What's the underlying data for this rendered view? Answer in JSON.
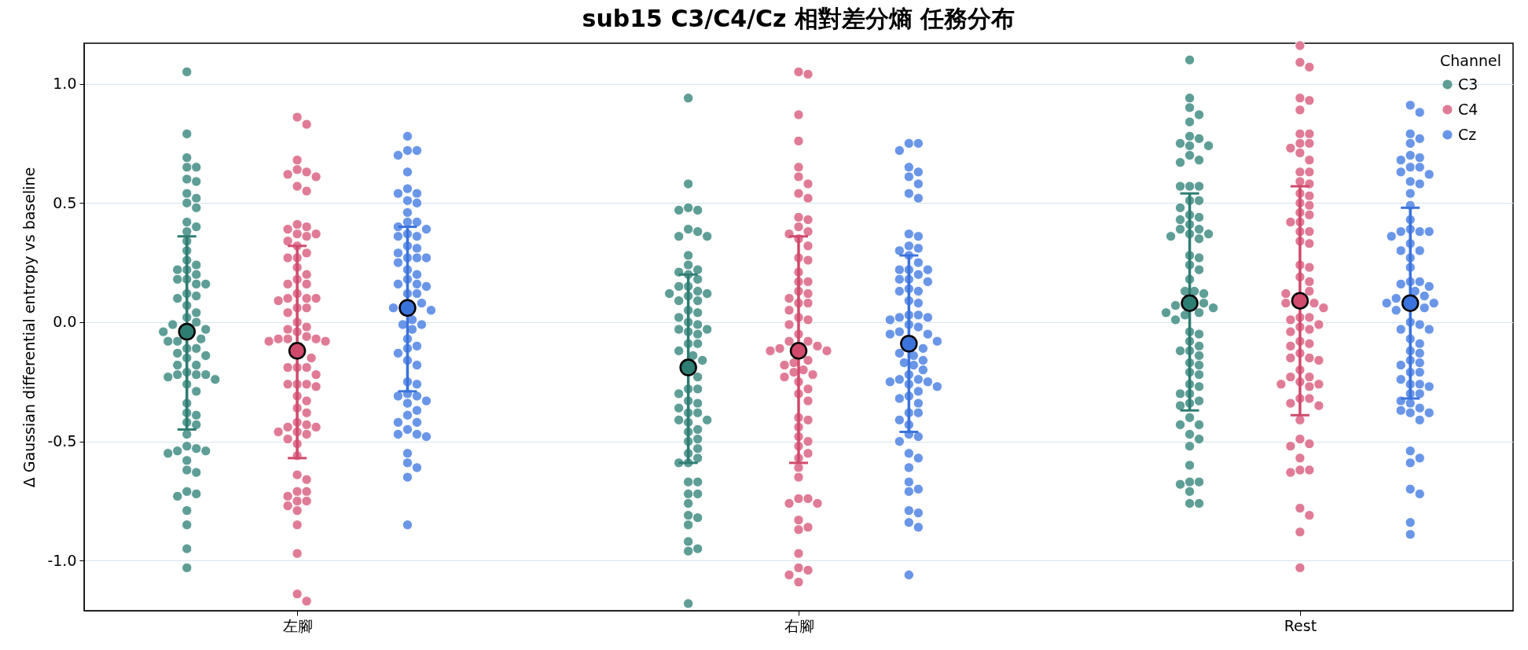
{
  "chart_data": {
    "type": "scatter",
    "title": "sub15 C3/C4/Cz 相對差分熵 任務分布",
    "ylabel": "Δ Gaussian differential entropy vs baseline",
    "legend_title": "Channel",
    "legend": "top right",
    "grid": "y",
    "marker": "circle",
    "categories": [
      "左腳",
      "右腳",
      "Rest"
    ],
    "ylim": [
      -1.21,
      1.17
    ],
    "yticks": [
      {
        "value": -1,
        "label": "-1.0"
      },
      {
        "value": -0.5,
        "label": "-0.5"
      },
      {
        "value": 0,
        "label": "0.0"
      },
      {
        "value": 0.5,
        "label": "0.5"
      },
      {
        "value": 1,
        "label": "1.0"
      }
    ],
    "series": [
      {
        "name": "C3",
        "color": "#5e9e96",
        "x": [
          "左腳",
          "左腳",
          "左腳",
          "左腳",
          "左腳",
          "左腳",
          "左腳",
          "左腳",
          "左腳",
          "左腳",
          "左腳",
          "左腳",
          "左腳",
          "左腳",
          "左腳",
          "左腳",
          "左腳",
          "左腳",
          "左腳",
          "左腳",
          "左腳",
          "左腳",
          "左腳",
          "左腳",
          "左腳",
          "左腳",
          "左腳",
          "左腳",
          "左腳",
          "左腳",
          "左腳",
          "左腳",
          "左腳",
          "左腳",
          "左腳",
          "左腳",
          "左腳",
          "左腳",
          "左腳",
          "左腳",
          "左腳",
          "左腳",
          "左腳",
          "左腳",
          "左腳",
          "左腳",
          "左腳",
          "左腳",
          "左腳",
          "左腳",
          "左腳",
          "左腳",
          "左腳",
          "左腳",
          "左腳",
          "左腳",
          "左腳",
          "左腳",
          "左腳",
          "左腳",
          "左腳",
          "左腳",
          "左腳",
          "左腳",
          "左腳",
          "左腳",
          "左腳",
          "左腳",
          "左腳",
          "左腳",
          "左腳",
          "左腳",
          "左腳",
          "左腳",
          "右腳",
          "右腳",
          "右腳",
          "右腳",
          "右腳",
          "右腳",
          "右腳",
          "右腳",
          "右腳",
          "右腳",
          "右腳",
          "右腳",
          "右腳",
          "右腳",
          "右腳",
          "右腳",
          "右腳",
          "右腳",
          "右腳",
          "右腳",
          "右腳",
          "右腳",
          "右腳",
          "右腳",
          "右腳",
          "右腳",
          "右腳",
          "右腳",
          "右腳",
          "右腳",
          "右腳",
          "右腳",
          "右腳",
          "右腳",
          "右腳",
          "右腳",
          "右腳",
          "右腳",
          "右腳",
          "右腳",
          "右腳",
          "右腳",
          "右腳",
          "右腳",
          "右腳",
          "右腳",
          "右腳",
          "右腳",
          "右腳",
          "右腳",
          "右腳",
          "右腳",
          "右腳",
          "右腳",
          "右腳",
          "右腳",
          "右腳",
          "右腳",
          "右腳",
          "右腳",
          "右腳",
          "右腳",
          "右腳",
          "右腳",
          "右腳",
          "右腳",
          "右腳",
          "右腳",
          "右腳",
          "右腳",
          "Rest",
          "Rest",
          "Rest",
          "Rest",
          "Rest",
          "Rest",
          "Rest",
          "Rest",
          "Rest",
          "Rest",
          "Rest",
          "Rest",
          "Rest",
          "Rest",
          "Rest",
          "Rest",
          "Rest",
          "Rest",
          "Rest",
          "Rest",
          "Rest",
          "Rest",
          "Rest",
          "Rest",
          "Rest",
          "Rest",
          "Rest",
          "Rest",
          "Rest",
          "Rest",
          "Rest",
          "Rest",
          "Rest",
          "Rest",
          "Rest",
          "Rest",
          "Rest",
          "Rest",
          "Rest",
          "Rest",
          "Rest",
          "Rest",
          "Rest",
          "Rest",
          "Rest",
          "Rest",
          "Rest",
          "Rest",
          "Rest",
          "Rest",
          "Rest",
          "Rest",
          "Rest",
          "Rest",
          "Rest",
          "Rest",
          "Rest",
          "Rest",
          "Rest",
          "Rest",
          "Rest",
          "Rest",
          "Rest",
          "Rest",
          "Rest",
          "Rest",
          "Rest",
          "Rest",
          "Rest",
          "Rest",
          "Rest",
          "Rest",
          "Rest",
          "Rest",
          "Rest"
        ],
        "values": [
          1.05,
          0.79,
          0.69,
          0.65,
          0.65,
          0.6,
          0.59,
          0.54,
          0.52,
          0.5,
          0.48,
          0.42,
          0.4,
          0.38,
          0.34,
          0.3,
          0.26,
          0.24,
          0.22,
          0.22,
          0.2,
          0.18,
          0.18,
          0.16,
          0.16,
          0.11,
          0.1,
          0.12,
          0.07,
          0.04,
          0.02,
          0.0,
          -0.01,
          -0.03,
          -0.04,
          -0.07,
          -0.08,
          -0.08,
          -0.11,
          -0.11,
          -0.13,
          -0.14,
          -0.15,
          -0.18,
          -0.18,
          -0.21,
          -0.22,
          -0.22,
          -0.22,
          -0.23,
          -0.24,
          -0.26,
          -0.29,
          -0.34,
          -0.38,
          -0.39,
          -0.42,
          -0.43,
          -0.47,
          -0.54,
          -0.52,
          -0.54,
          -0.55,
          -0.53,
          -0.58,
          -0.62,
          -0.63,
          -0.72,
          -0.71,
          -0.73,
          -0.79,
          -0.85,
          -0.95,
          -1.03,
          0.94,
          0.58,
          0.48,
          0.47,
          0.47,
          0.39,
          0.38,
          0.36,
          0.36,
          0.28,
          0.24,
          0.22,
          0.2,
          0.21,
          0.15,
          0.13,
          0.15,
          0.18,
          0.12,
          0.12,
          0.09,
          0.09,
          0.11,
          0.05,
          0.04,
          0.02,
          -0.01,
          0.0,
          -0.03,
          -0.03,
          -0.05,
          -0.04,
          -0.09,
          -0.09,
          -0.12,
          -0.14,
          -0.16,
          -0.23,
          -0.28,
          -0.28,
          -0.3,
          -0.34,
          -0.33,
          -0.36,
          -0.38,
          -0.38,
          -0.41,
          -0.41,
          -0.42,
          -0.45,
          -0.46,
          -0.49,
          -0.5,
          -0.53,
          -0.55,
          -0.57,
          -0.59,
          -0.59,
          -0.67,
          -0.67,
          -0.72,
          -0.72,
          -0.76,
          -0.81,
          -0.82,
          -0.85,
          -0.92,
          -0.96,
          -0.95,
          -1.18,
          1.1,
          0.94,
          0.9,
          0.87,
          0.84,
          0.78,
          0.75,
          0.74,
          0.77,
          0.74,
          0.7,
          0.68,
          0.67,
          0.57,
          0.57,
          0.57,
          0.51,
          0.51,
          0.48,
          0.45,
          0.44,
          0.43,
          0.41,
          0.39,
          0.39,
          0.37,
          0.37,
          0.36,
          0.35,
          0.28,
          0.27,
          0.24,
          0.22,
          0.18,
          0.13,
          0.13,
          0.12,
          0.08,
          0.07,
          0.04,
          0.04,
          0.06,
          0.03,
          0.01,
          -0.04,
          -0.05,
          -0.08,
          -0.1,
          -0.12,
          -0.12,
          -0.14,
          -0.17,
          -0.18,
          -0.21,
          -0.22,
          -0.26,
          -0.27,
          -0.3,
          -0.3,
          -0.33,
          -0.34,
          -0.35,
          -0.4,
          -0.43,
          -0.43,
          -0.47,
          -0.49,
          -0.52,
          -0.6,
          -0.67,
          -0.67,
          -0.68,
          -0.71,
          -0.76,
          -0.76
        ]
      },
      {
        "name": "C4",
        "color": "#e07b96",
        "x": [
          "左腳",
          "左腳",
          "左腳",
          "左腳",
          "左腳",
          "左腳",
          "左腳",
          "左腳",
          "左腳",
          "左腳",
          "左腳",
          "左腳",
          "左腳",
          "左腳",
          "左腳",
          "左腳",
          "左腳",
          "左腳",
          "左腳",
          "左腳",
          "左腳",
          "左腳",
          "左腳",
          "左腳",
          "左腳",
          "左腳",
          "左腳",
          "左腳",
          "左腳",
          "左腳",
          "左腳",
          "左腳",
          "左腳",
          "左腳",
          "左腳",
          "左腳",
          "左腳",
          "左腳",
          "左腳",
          "左腳",
          "左腳",
          "左腳",
          "左腳",
          "左腳",
          "左腳",
          "左腳",
          "左腳",
          "左腳",
          "左腳",
          "左腳",
          "左腳",
          "左腳",
          "左腳",
          "左腳",
          "左腳",
          "左腳",
          "左腳",
          "左腳",
          "左腳",
          "左腳",
          "左腳",
          "左腳",
          "左腳",
          "左腳",
          "左腳",
          "左腳",
          "左腳",
          "左腳",
          "左腳",
          "左腳",
          "左腳",
          "左腳",
          "左腳",
          "左腳",
          "左腳",
          "左腳",
          "左腳",
          "左腳",
          "左腳",
          "右腳",
          "右腳",
          "右腳",
          "右腳",
          "右腳",
          "右腳",
          "右腳",
          "右腳",
          "右腳",
          "右腳",
          "右腳",
          "右腳",
          "右腳",
          "右腳",
          "右腳",
          "右腳",
          "右腳",
          "右腳",
          "右腳",
          "右腳",
          "右腳",
          "右腳",
          "右腳",
          "右腳",
          "右腳",
          "右腳",
          "右腳",
          "右腳",
          "右腳",
          "右腳",
          "右腳",
          "右腳",
          "右腳",
          "右腳",
          "右腳",
          "右腳",
          "右腳",
          "右腳",
          "右腳",
          "右腳",
          "右腳",
          "右腳",
          "右腳",
          "右腳",
          "右腳",
          "右腳",
          "右腳",
          "右腳",
          "右腳",
          "右腳",
          "右腳",
          "右腳",
          "右腳",
          "右腳",
          "右腳",
          "右腳",
          "右腳",
          "右腳",
          "右腳",
          "右腳",
          "右腳",
          "右腳",
          "右腳",
          "右腳",
          "右腳",
          "右腳",
          "右腳",
          "右腳",
          "右腳",
          "右腳",
          "Rest",
          "Rest",
          "Rest",
          "Rest",
          "Rest",
          "Rest",
          "Rest",
          "Rest",
          "Rest",
          "Rest",
          "Rest",
          "Rest",
          "Rest",
          "Rest",
          "Rest",
          "Rest",
          "Rest",
          "Rest",
          "Rest",
          "Rest",
          "Rest",
          "Rest",
          "Rest",
          "Rest",
          "Rest",
          "Rest",
          "Rest",
          "Rest",
          "Rest",
          "Rest",
          "Rest",
          "Rest",
          "Rest",
          "Rest",
          "Rest",
          "Rest",
          "Rest",
          "Rest",
          "Rest",
          "Rest",
          "Rest",
          "Rest",
          "Rest",
          "Rest",
          "Rest",
          "Rest",
          "Rest",
          "Rest",
          "Rest",
          "Rest",
          "Rest",
          "Rest",
          "Rest",
          "Rest",
          "Rest",
          "Rest",
          "Rest",
          "Rest",
          "Rest",
          "Rest",
          "Rest",
          "Rest",
          "Rest",
          "Rest",
          "Rest",
          "Rest",
          "Rest",
          "Rest",
          "Rest",
          "Rest",
          "Rest",
          "Rest",
          "Rest",
          "Rest",
          "Rest"
        ],
        "values": [
          0.86,
          0.83,
          0.68,
          0.64,
          0.62,
          0.63,
          0.61,
          0.57,
          0.55,
          0.39,
          0.41,
          0.4,
          0.36,
          0.37,
          0.37,
          0.34,
          0.32,
          0.29,
          0.27,
          0.27,
          0.23,
          0.2,
          0.18,
          0.16,
          0.16,
          0.12,
          0.1,
          0.09,
          0.1,
          0.1,
          0.06,
          0.04,
          0.06,
          0.0,
          -0.03,
          -0.02,
          -0.04,
          -0.08,
          -0.08,
          -0.06,
          -0.07,
          -0.07,
          -0.07,
          -0.15,
          -0.19,
          -0.19,
          -0.19,
          -0.22,
          -0.26,
          -0.26,
          -0.27,
          -0.26,
          -0.31,
          -0.33,
          -0.36,
          -0.38,
          -0.42,
          -0.44,
          -0.44,
          -0.43,
          -0.46,
          -0.46,
          -0.47,
          -0.49,
          -0.51,
          -0.56,
          -0.64,
          -0.66,
          -0.71,
          -0.71,
          -0.73,
          -0.75,
          -0.77,
          -0.75,
          -0.79,
          -0.85,
          -0.97,
          -1.14,
          -1.17,
          1.05,
          1.04,
          0.87,
          0.76,
          0.65,
          0.61,
          0.58,
          0.54,
          0.52,
          0.44,
          0.43,
          0.37,
          0.38,
          0.4,
          0.35,
          0.32,
          0.27,
          0.26,
          0.21,
          0.17,
          0.17,
          0.13,
          0.12,
          0.1,
          0.08,
          0.08,
          0.05,
          0.01,
          0.02,
          -0.01,
          -0.05,
          -0.08,
          -0.08,
          -0.1,
          -0.11,
          -0.12,
          -0.12,
          -0.17,
          -0.18,
          -0.16,
          -0.2,
          -0.21,
          -0.23,
          -0.22,
          -0.25,
          -0.28,
          -0.3,
          -0.33,
          -0.4,
          -0.41,
          -0.44,
          -0.48,
          -0.5,
          -0.52,
          -0.55,
          -0.57,
          -0.61,
          -0.65,
          -0.74,
          -0.74,
          -0.76,
          -0.76,
          -0.83,
          -0.87,
          -0.86,
          -0.97,
          -1.03,
          -1.04,
          -1.06,
          -1.09,
          1.16,
          1.07,
          1.09,
          0.94,
          0.93,
          0.89,
          0.79,
          0.79,
          0.75,
          0.75,
          0.73,
          0.71,
          0.68,
          0.63,
          0.63,
          0.59,
          0.58,
          0.54,
          0.53,
          0.5,
          0.49,
          0.46,
          0.45,
          0.42,
          0.42,
          0.38,
          0.38,
          0.33,
          0.34,
          0.23,
          0.24,
          0.19,
          0.17,
          0.12,
          0.13,
          0.08,
          0.08,
          0.06,
          0.02,
          0.02,
          0.01,
          -0.01,
          -0.03,
          -0.02,
          -0.04,
          -0.08,
          -0.1,
          -0.09,
          -0.13,
          -0.15,
          -0.15,
          -0.16,
          -0.2,
          -0.23,
          -0.23,
          -0.25,
          -0.26,
          -0.27,
          -0.26,
          -0.32,
          -0.32,
          -0.34,
          -0.35,
          -0.41,
          -0.49,
          -0.52,
          -0.51,
          -0.57,
          -0.62,
          -0.63,
          -0.62,
          -0.78,
          -0.81,
          -0.88,
          -1.03
        ]
      },
      {
        "name": "Cz",
        "color": "#6a96e8",
        "x": [
          "左腳",
          "左腳",
          "左腳",
          "左腳",
          "左腳",
          "左腳",
          "左腳",
          "左腳",
          "左腳",
          "左腳",
          "左腳",
          "左腳",
          "左腳",
          "左腳",
          "左腳",
          "左腳",
          "左腳",
          "左腳",
          "左腳",
          "左腳",
          "左腳",
          "左腳",
          "左腳",
          "左腳",
          "左腳",
          "左腳",
          "左腳",
          "左腳",
          "左腳",
          "左腳",
          "左腳",
          "左腳",
          "左腳",
          "左腳",
          "左腳",
          "左腳",
          "左腳",
          "左腳",
          "左腳",
          "左腳",
          "左腳",
          "左腳",
          "左腳",
          "左腳",
          "左腳",
          "左腳",
          "左腳",
          "左腳",
          "左腳",
          "左腳",
          "左腳",
          "左腳",
          "左腳",
          "左腳",
          "左腳",
          "左腳",
          "左腳",
          "左腳",
          "左腳",
          "左腳",
          "左腳",
          "左腳",
          "左腳",
          "左腳",
          "左腳",
          "左腳",
          "右腳",
          "右腳",
          "右腳",
          "右腳",
          "右腳",
          "右腳",
          "右腳",
          "右腳",
          "右腳",
          "右腳",
          "右腳",
          "右腳",
          "右腳",
          "右腳",
          "右腳",
          "右腳",
          "右腳",
          "右腳",
          "右腳",
          "右腳",
          "右腳",
          "右腳",
          "右腳",
          "右腳",
          "右腳",
          "右腳",
          "右腳",
          "右腳",
          "右腳",
          "右腳",
          "右腳",
          "右腳",
          "右腳",
          "右腳",
          "右腳",
          "右腳",
          "右腳",
          "右腳",
          "右腳",
          "右腳",
          "右腳",
          "右腳",
          "右腳",
          "右腳",
          "右腳",
          "右腳",
          "右腳",
          "右腳",
          "右腳",
          "右腳",
          "右腳",
          "右腳",
          "右腳",
          "右腳",
          "右腳",
          "右腳",
          "右腳",
          "右腳",
          "右腳",
          "右腳",
          "右腳",
          "右腳",
          "右腳",
          "右腳",
          "右腳",
          "右腳",
          "右腳",
          "右腳",
          "右腳",
          "右腳",
          "右腳",
          "右腳",
          "右腳",
          "右腳",
          "右腳",
          "Rest",
          "Rest",
          "Rest",
          "Rest",
          "Rest",
          "Rest",
          "Rest",
          "Rest",
          "Rest",
          "Rest",
          "Rest",
          "Rest",
          "Rest",
          "Rest",
          "Rest",
          "Rest",
          "Rest",
          "Rest",
          "Rest",
          "Rest",
          "Rest",
          "Rest",
          "Rest",
          "Rest",
          "Rest",
          "Rest",
          "Rest",
          "Rest",
          "Rest",
          "Rest",
          "Rest",
          "Rest",
          "Rest",
          "Rest",
          "Rest",
          "Rest",
          "Rest",
          "Rest",
          "Rest",
          "Rest",
          "Rest",
          "Rest",
          "Rest",
          "Rest",
          "Rest",
          "Rest",
          "Rest",
          "Rest",
          "Rest",
          "Rest",
          "Rest",
          "Rest",
          "Rest",
          "Rest",
          "Rest",
          "Rest",
          "Rest",
          "Rest",
          "Rest",
          "Rest",
          "Rest",
          "Rest",
          "Rest",
          "Rest",
          "Rest",
          "Rest",
          "Rest",
          "Rest",
          "Rest",
          "Rest",
          "Rest"
        ],
        "values": [
          0.78,
          0.72,
          0.72,
          0.7,
          0.63,
          0.56,
          0.54,
          0.54,
          0.51,
          0.5,
          0.46,
          0.42,
          0.42,
          0.4,
          0.39,
          0.37,
          0.36,
          0.36,
          0.32,
          0.31,
          0.29,
          0.27,
          0.27,
          0.27,
          0.25,
          0.22,
          0.2,
          0.18,
          0.16,
          0.16,
          0.15,
          0.12,
          0.12,
          0.08,
          0.06,
          0.05,
          0.01,
          -0.01,
          -0.01,
          -0.03,
          -0.07,
          -0.1,
          -0.11,
          -0.13,
          -0.16,
          -0.18,
          -0.25,
          -0.26,
          -0.3,
          -0.31,
          -0.31,
          -0.33,
          -0.34,
          -0.37,
          -0.39,
          -0.42,
          -0.42,
          -0.45,
          -0.47,
          -0.47,
          -0.48,
          -0.55,
          -0.59,
          -0.61,
          -0.65,
          -0.85,
          0.75,
          0.75,
          0.72,
          0.65,
          0.63,
          0.61,
          0.58,
          0.54,
          0.52,
          0.37,
          0.36,
          0.31,
          0.32,
          0.3,
          0.28,
          0.25,
          0.22,
          0.22,
          0.22,
          0.2,
          0.18,
          0.18,
          0.17,
          0.13,
          0.14,
          0.13,
          0.08,
          0.09,
          0.02,
          0.03,
          0.03,
          0.02,
          -0.01,
          0.01,
          -0.02,
          -0.05,
          -0.08,
          -0.04,
          -0.05,
          -0.13,
          -0.14,
          -0.11,
          -0.17,
          -0.16,
          -0.18,
          -0.2,
          -0.24,
          -0.22,
          -0.24,
          -0.25,
          -0.25,
          -0.26,
          -0.29,
          -0.27,
          -0.31,
          -0.32,
          -0.34,
          -0.38,
          -0.38,
          -0.41,
          -0.43,
          -0.48,
          -0.47,
          -0.5,
          -0.55,
          -0.57,
          -0.61,
          -0.7,
          -0.71,
          -0.67,
          -0.8,
          -0.79,
          -0.84,
          -0.86,
          -1.06,
          0.91,
          0.88,
          0.79,
          0.77,
          0.75,
          0.7,
          0.69,
          0.65,
          0.68,
          0.65,
          0.63,
          0.62,
          0.58,
          0.59,
          0.54,
          0.49,
          0.43,
          0.39,
          0.38,
          0.38,
          0.38,
          0.36,
          0.33,
          0.3,
          0.3,
          0.27,
          0.23,
          0.17,
          0.17,
          0.16,
          0.15,
          0.13,
          0.11,
          0.1,
          0.08,
          0.08,
          0.05,
          0.06,
          0.0,
          -0.01,
          -0.03,
          -0.03,
          -0.07,
          -0.09,
          -0.12,
          -0.13,
          -0.16,
          -0.17,
          -0.18,
          -0.21,
          -0.21,
          -0.24,
          -0.26,
          -0.26,
          -0.27,
          -0.3,
          -0.3,
          -0.33,
          -0.34,
          -0.36,
          -0.38,
          -0.37,
          -0.38,
          -0.41,
          -0.54,
          -0.57,
          -0.59,
          -0.72,
          -0.7,
          -0.84,
          -0.89
        ]
      },
      {
        "color": "#2e7d72",
        "x": [
          "左腳",
          "右腳",
          "Rest"
        ],
        "values": [
          -0.04,
          -0.19,
          0.08
        ],
        "errors": [
          [
            -0.45,
            0.36
          ],
          [
            -0.59,
            0.2
          ],
          [
            -0.37,
            0.54
          ]
        ]
      },
      {
        "color": "#d04a6c",
        "x": [
          "左腳",
          "右腳",
          "Rest"
        ],
        "values": [
          -0.12,
          -0.12,
          0.09
        ],
        "errors": [
          [
            -0.57,
            0.32
          ],
          [
            -0.59,
            0.36
          ],
          [
            -0.39,
            0.57
          ]
        ]
      },
      {
        "color": "#3b73dc",
        "x": [
          "左腳",
          "右腳",
          "Rest"
        ],
        "values": [
          0.06,
          -0.09,
          0.08
        ],
        "errors": [
          [
            -0.29,
            0.4
          ],
          [
            -0.46,
            0.28
          ],
          [
            -0.32,
            0.48
          ]
        ]
      }
    ]
  }
}
